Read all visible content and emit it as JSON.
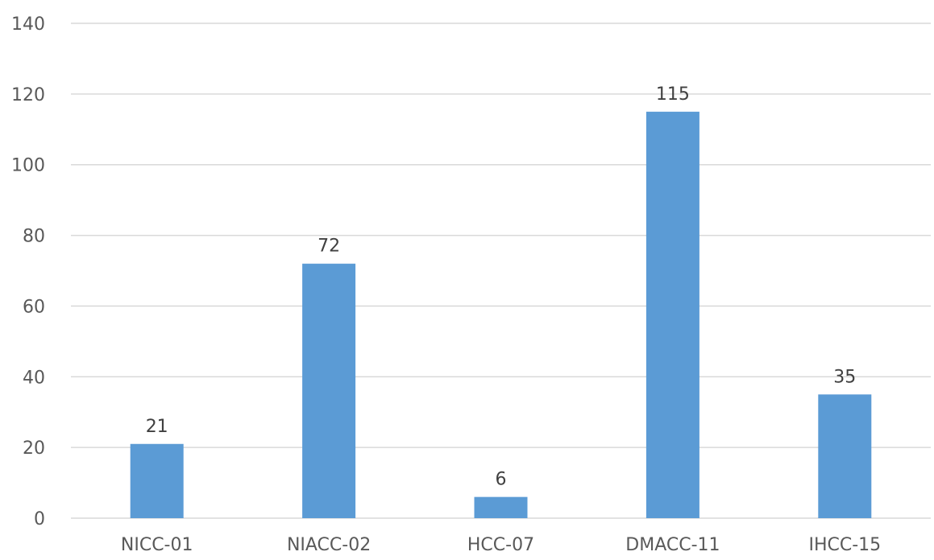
{
  "chart_data": {
    "type": "bar",
    "categories": [
      "NICC-01",
      "NIACC-02",
      "HCC-07",
      "DMACC-11",
      "IHCC-15"
    ],
    "values": [
      21,
      72,
      6,
      115,
      35
    ],
    "data_labels": [
      "21",
      "72",
      "6",
      "115",
      "35"
    ],
    "y_ticks": [
      "0",
      "20",
      "40",
      "60",
      "80",
      "100",
      "120",
      "140"
    ],
    "ylim": [
      0,
      140
    ],
    "title": "",
    "xlabel": "",
    "ylabel": "",
    "grid": true,
    "legend": "none",
    "bar_color": "#5b9bd5",
    "grid_color": "#d9d9d9"
  }
}
